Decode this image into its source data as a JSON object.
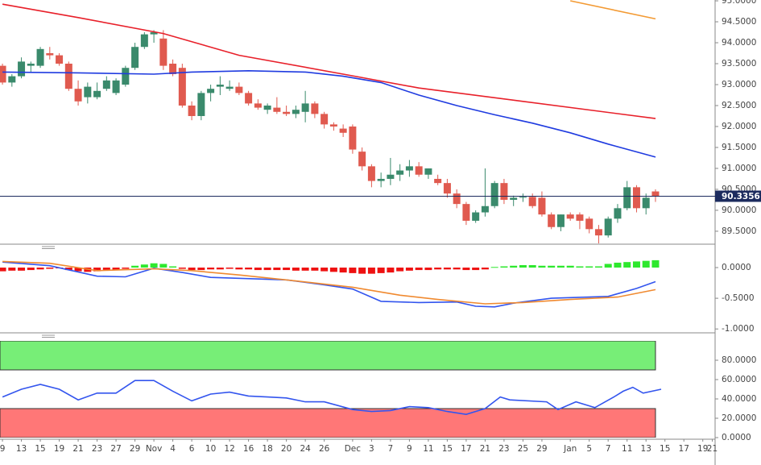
{
  "chart_data": [
    {
      "type": "candlestick",
      "xlim": [
        -0.26,
        75.3
      ],
      "xticks": [
        {
          "value": 0,
          "label": "9"
        },
        {
          "value": 2,
          "label": "13"
        },
        {
          "value": 4,
          "label": "15"
        },
        {
          "value": 6,
          "label": "19"
        },
        {
          "value": 8,
          "label": "21"
        },
        {
          "value": 10,
          "label": "23"
        },
        {
          "value": 12,
          "label": "27"
        },
        {
          "value": 14,
          "label": "29"
        },
        {
          "value": 16,
          "label": "Nov"
        },
        {
          "value": 18,
          "label": "4"
        },
        {
          "value": 20,
          "label": "6"
        },
        {
          "value": 22,
          "label": "10"
        },
        {
          "value": 24,
          "label": "12"
        },
        {
          "value": 26,
          "label": "16"
        },
        {
          "value": 28,
          "label": "18"
        },
        {
          "value": 30,
          "label": "20"
        },
        {
          "value": 32,
          "label": "24"
        },
        {
          "value": 34,
          "label": "26"
        },
        {
          "value": 37,
          "label": "Dec"
        },
        {
          "value": 39,
          "label": "3"
        },
        {
          "value": 41,
          "label": "7"
        },
        {
          "value": 43,
          "label": "9"
        },
        {
          "value": 45,
          "label": "11"
        },
        {
          "value": 47,
          "label": "15"
        },
        {
          "value": 49,
          "label": "17"
        },
        {
          "value": 51,
          "label": "21"
        },
        {
          "value": 53,
          "label": "23"
        },
        {
          "value": 55,
          "label": "25"
        },
        {
          "value": 57,
          "label": "29"
        },
        {
          "value": 60,
          "label": "Jan"
        },
        {
          "value": 62,
          "label": "5"
        },
        {
          "value": 64,
          "label": "7"
        },
        {
          "value": 66,
          "label": "11"
        },
        {
          "value": 68,
          "label": "13"
        },
        {
          "value": 70,
          "label": "15"
        },
        {
          "value": 72,
          "label": "17"
        },
        {
          "value": 74,
          "label": "19"
        },
        {
          "value": 75,
          "label": "21"
        }
      ],
      "ylim": [
        89.21,
        95.02
      ],
      "yticks": [
        {
          "value": 89.5,
          "label": "89.5000"
        },
        {
          "value": 90,
          "label": "90.0000"
        },
        {
          "value": 90.5,
          "label": "90.5000"
        },
        {
          "value": 91,
          "label": "91.0000"
        },
        {
          "value": 91.5,
          "label": "91.5000"
        },
        {
          "value": 92,
          "label": "92.0000"
        },
        {
          "value": 92.5,
          "label": "92.5000"
        },
        {
          "value": 93,
          "label": "93.0000"
        },
        {
          "value": 93.5,
          "label": "93.5000"
        },
        {
          "value": 94,
          "label": "94.0000"
        },
        {
          "value": 94.5,
          "label": "94.5000"
        },
        {
          "value": 95,
          "label": "95.0000"
        }
      ],
      "up_color": "#3a8a6c",
      "down_color": "#e05a4f",
      "open": [
        93.45,
        93.05,
        93.2,
        93.45,
        93.45,
        93.75,
        93.7,
        93.5,
        92.9,
        92.7,
        92.7,
        92.9,
        92.8,
        93.0,
        93.4,
        93.9,
        94.2,
        94.1,
        93.5,
        93.4,
        92.5,
        92.25,
        92.8,
        92.95,
        92.9,
        92.95,
        92.8,
        92.55,
        92.4,
        92.45,
        92.35,
        92.3,
        92.35,
        92.55,
        92.3,
        92.05,
        91.95,
        92.0,
        91.4,
        91.05,
        90.7,
        90.75,
        90.85,
        90.95,
        91.05,
        90.85,
        90.75,
        90.65,
        90.4,
        90.15,
        89.75,
        89.95,
        90.1,
        90.65,
        90.25,
        90.3,
        90.32,
        90.3,
        89.9,
        89.6,
        89.9,
        89.9,
        89.8,
        89.55,
        89.4,
        89.8,
        90.05,
        90.55,
        90.05,
        90.45
      ],
      "high": [
        93.5,
        93.25,
        93.65,
        93.55,
        93.9,
        93.9,
        93.75,
        93.55,
        93.1,
        93.05,
        93.05,
        93.2,
        93.15,
        93.45,
        94.0,
        94.25,
        94.3,
        94.3,
        93.6,
        93.5,
        92.6,
        92.85,
        93.0,
        93.2,
        93.1,
        93.05,
        92.85,
        92.65,
        92.55,
        92.7,
        92.5,
        92.5,
        92.85,
        92.6,
        92.35,
        92.1,
        92.05,
        92.05,
        91.5,
        91.1,
        90.9,
        91.25,
        91.1,
        91.2,
        91.15,
        91.0,
        90.85,
        90.75,
        90.5,
        90.2,
        90.0,
        91.0,
        90.7,
        90.75,
        90.35,
        90.4,
        90.4,
        90.45,
        89.95,
        89.9,
        89.95,
        89.95,
        89.85,
        89.65,
        89.85,
        90.15,
        90.7,
        90.6,
        90.4,
        90.5
      ],
      "low": [
        93.0,
        92.95,
        93.15,
        93.3,
        93.4,
        93.6,
        93.45,
        92.85,
        92.5,
        92.55,
        92.65,
        92.85,
        92.75,
        92.95,
        93.35,
        93.85,
        94.0,
        93.35,
        93.2,
        92.45,
        92.15,
        92.15,
        92.6,
        92.75,
        92.85,
        92.75,
        92.5,
        92.4,
        92.3,
        92.3,
        92.25,
        92.2,
        92.1,
        92.2,
        91.95,
        91.9,
        91.75,
        91.35,
        90.95,
        90.55,
        90.55,
        90.6,
        90.7,
        90.8,
        90.8,
        90.75,
        90.6,
        90.3,
        90.05,
        89.65,
        89.7,
        89.85,
        90.05,
        90.15,
        90.1,
        90.2,
        90.05,
        89.85,
        89.55,
        89.5,
        89.75,
        89.55,
        89.45,
        89.2,
        89.35,
        89.7,
        90.0,
        89.95,
        89.9,
        90.2
      ],
      "close": [
        93.05,
        93.2,
        93.55,
        93.5,
        93.85,
        93.7,
        93.5,
        92.9,
        92.6,
        92.95,
        92.85,
        93.1,
        93.1,
        93.4,
        93.9,
        94.2,
        94.25,
        93.45,
        93.25,
        92.5,
        92.25,
        92.8,
        92.9,
        93.0,
        92.95,
        92.8,
        92.55,
        92.45,
        92.5,
        92.35,
        92.3,
        92.4,
        92.55,
        92.3,
        92.05,
        92.0,
        91.85,
        91.45,
        91.05,
        90.7,
        90.75,
        90.85,
        90.95,
        91.05,
        90.85,
        91.0,
        90.65,
        90.4,
        90.15,
        89.75,
        89.95,
        90.1,
        90.65,
        90.25,
        90.3,
        90.32,
        90.1,
        89.9,
        89.6,
        89.9,
        89.8,
        89.75,
        89.55,
        89.4,
        89.8,
        90.05,
        90.55,
        90.05,
        90.3,
        90.3356
      ],
      "series": [
        {
          "color": "#1f3be0",
          "x": [
            0,
            8,
            16,
            20,
            26,
            32,
            36,
            40,
            44,
            48,
            52,
            56,
            60,
            64,
            69
          ],
          "values": [
            93.3,
            93.28,
            93.25,
            93.3,
            93.33,
            93.3,
            93.2,
            93.05,
            92.75,
            92.5,
            92.28,
            92.08,
            91.85,
            91.58,
            91.27
          ]
        },
        {
          "color": "#e8202a",
          "x": [
            0,
            8,
            17,
            25,
            37,
            44,
            55,
            69
          ],
          "values": [
            94.92,
            94.6,
            94.22,
            93.7,
            93.21,
            92.92,
            92.6,
            92.19
          ]
        },
        {
          "color": "#f39a33",
          "x": [
            60,
            69
          ],
          "values": [
            95.0,
            94.57
          ]
        }
      ],
      "last_price": 90.3356,
      "last_price_color": "#1c2b5e"
    },
    {
      "type": "macd",
      "ylim": [
        -1.05,
        0.263
      ],
      "yticks": [
        {
          "value": 0,
          "label": "0.0000"
        },
        {
          "value": -0.5,
          "label": "-0.5000"
        },
        {
          "value": -1,
          "label": "-1.0000"
        }
      ],
      "histogram": {
        "positive_color": "#2ee82e",
        "negative_color": "#ee1111",
        "values": [
          -0.06,
          -0.05,
          -0.05,
          -0.04,
          -0.03,
          -0.02,
          -0.01,
          -0.04,
          -0.06,
          -0.07,
          -0.06,
          -0.05,
          -0.04,
          -0.02,
          0.03,
          0.05,
          0.07,
          0.06,
          0.02,
          -0.02,
          -0.04,
          -0.04,
          -0.03,
          -0.03,
          -0.02,
          -0.03,
          -0.03,
          -0.04,
          -0.04,
          -0.04,
          -0.04,
          -0.05,
          -0.05,
          -0.05,
          -0.06,
          -0.07,
          -0.08,
          -0.09,
          -0.1,
          -0.1,
          -0.09,
          -0.08,
          -0.06,
          -0.05,
          -0.04,
          -0.04,
          -0.03,
          -0.03,
          -0.03,
          -0.04,
          -0.04,
          -0.03,
          0.01,
          0.02,
          0.03,
          0.04,
          0.04,
          0.03,
          0.03,
          0.03,
          0.03,
          0.02,
          0.02,
          0.02,
          0.06,
          0.08,
          0.09,
          0.1,
          0.11,
          0.12
        ]
      },
      "series": [
        {
          "color": "#3355ee",
          "x": [
            0,
            5,
            10,
            13,
            16,
            19,
            22,
            30,
            34,
            37,
            40,
            44,
            48,
            50,
            52,
            54,
            58,
            62,
            64,
            67,
            69
          ],
          "values": [
            0.09,
            0.03,
            -0.14,
            -0.15,
            -0.01,
            -0.08,
            -0.16,
            -0.2,
            -0.28,
            -0.35,
            -0.55,
            -0.57,
            -0.56,
            -0.63,
            -0.64,
            -0.58,
            -0.5,
            -0.48,
            -0.47,
            -0.34,
            -0.23
          ]
        },
        {
          "color": "#f08a30",
          "x": [
            0,
            5,
            10,
            16,
            20,
            25,
            30,
            37,
            42,
            46,
            51,
            55,
            60,
            65,
            69
          ],
          "values": [
            0.1,
            0.07,
            -0.05,
            -0.02,
            -0.05,
            -0.12,
            -0.2,
            -0.32,
            -0.45,
            -0.52,
            -0.59,
            -0.57,
            -0.52,
            -0.48,
            -0.36
          ]
        }
      ]
    },
    {
      "type": "rsi",
      "ylim": [
        0,
        100
      ],
      "yticks": [
        {
          "value": 0,
          "label": "0.0000"
        },
        {
          "value": 20,
          "label": "20.0000"
        },
        {
          "value": 40,
          "label": "40.0000"
        },
        {
          "value": 60,
          "label": "60.0000"
        },
        {
          "value": 80,
          "label": "80.0000"
        }
      ],
      "bands": [
        {
          "from": 70,
          "to": 100,
          "color": "#77ee77"
        },
        {
          "from": 0,
          "to": 30,
          "color": "#ff7777"
        }
      ],
      "series": [
        {
          "color": "#3355ee",
          "x": [
            0,
            2,
            4,
            6,
            8,
            10,
            12,
            14,
            16,
            18,
            20,
            22,
            24,
            26,
            28,
            30,
            32,
            34,
            37,
            39,
            41,
            43,
            45,
            47,
            49,
            51,
            52.6,
            53.6,
            57.5,
            58.7,
            60.6,
            62.6,
            64.6,
            65.6,
            66.6,
            67.7,
            69.6
          ],
          "values": [
            42,
            50,
            55,
            50,
            39,
            46,
            46,
            59,
            59,
            48,
            38,
            45,
            47,
            43,
            42,
            41,
            37,
            37,
            29,
            27,
            28,
            32,
            31,
            27,
            24,
            30,
            42,
            39,
            37,
            29,
            37,
            31,
            42,
            48,
            52,
            46,
            50
          ]
        }
      ]
    }
  ]
}
